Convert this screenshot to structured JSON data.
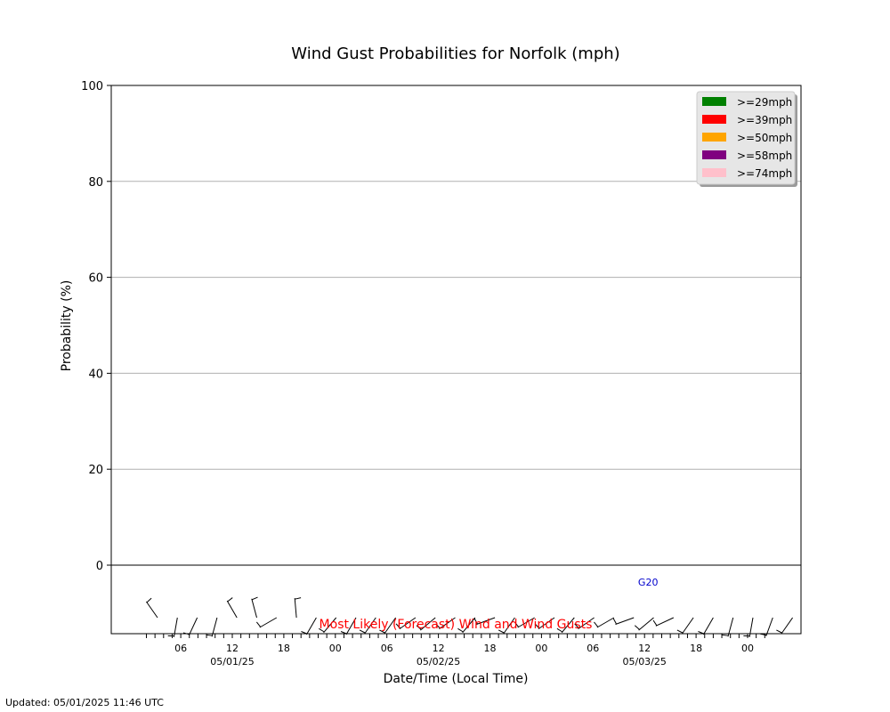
{
  "chart_data": {
    "type": "bar",
    "title": "Wind Gust Probabilities for Norfolk (mph)",
    "xlabel": "Date/Time (Local Time)",
    "ylabel": "Probability (%)",
    "ylim": [
      0,
      100
    ],
    "yticks": [
      0,
      20,
      40,
      60,
      80,
      100
    ],
    "grid": true,
    "legend_position": "top-right",
    "series": [
      {
        "name": ">=29mph",
        "color": "#008000",
        "values": []
      },
      {
        "name": ">=39mph",
        "color": "#ff0000",
        "values": []
      },
      {
        "name": ">=50mph",
        "color": "#ffa500",
        "values": []
      },
      {
        "name": ">=58mph",
        "color": "#800080",
        "values": []
      },
      {
        "name": ">=74mph",
        "color": "#ffc0cb",
        "values": []
      }
    ],
    "x_tick_labels": [
      {
        "hour": "06",
        "date": ""
      },
      {
        "hour": "12",
        "date": "05/01/25"
      },
      {
        "hour": "18",
        "date": ""
      },
      {
        "hour": "00",
        "date": ""
      },
      {
        "hour": "06",
        "date": ""
      },
      {
        "hour": "12",
        "date": "05/02/25"
      },
      {
        "hour": "18",
        "date": ""
      },
      {
        "hour": "00",
        "date": ""
      },
      {
        "hour": "06",
        "date": ""
      },
      {
        "hour": "12",
        "date": "05/03/25"
      },
      {
        "hour": "18",
        "date": ""
      },
      {
        "hour": "00",
        "date": ""
      }
    ],
    "wind_panel": {
      "caption": "Most Likely (Forecast) Wind and Wind Gusts",
      "barb_directions_deg": [
        325,
        190,
        205,
        195,
        330,
        345,
        240,
        355,
        210,
        220,
        210,
        215,
        215,
        235,
        230,
        235,
        220,
        250,
        215,
        240,
        235,
        220,
        235,
        240,
        250,
        230,
        245,
        215,
        210,
        195,
        190,
        200,
        215
      ],
      "gust_labels": [
        {
          "barb_index": 24,
          "text": "G20"
        }
      ]
    }
  },
  "updated": "Updated: 05/01/2025 11:46 UTC"
}
